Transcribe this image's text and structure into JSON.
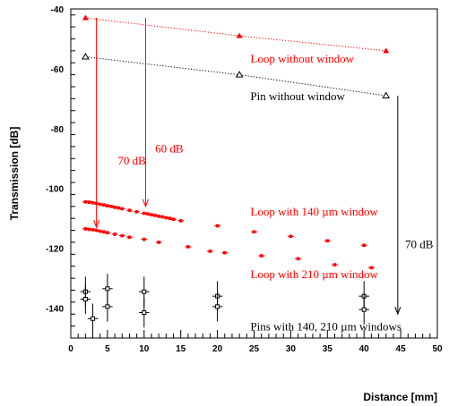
{
  "chart_data": {
    "type": "scatter",
    "title": "",
    "xlabel": "Distance [mm]",
    "ylabel": "Transmission [dB]",
    "xlim": [
      0,
      50
    ],
    "ylim": [
      -150,
      -40
    ],
    "x_ticks": [
      0,
      5,
      10,
      15,
      20,
      25,
      30,
      35,
      40,
      45,
      50
    ],
    "y_ticks": [
      -140,
      -120,
      -100,
      -80,
      -60,
      -40
    ],
    "colors": {
      "red": "#ff0000",
      "black": "#000000"
    },
    "series": [
      {
        "name": "Loop without window",
        "color": "#ff0000",
        "marker": "filled-triangle",
        "line": "dotted",
        "x": [
          2,
          23,
          43
        ],
        "y": [
          -43,
          -49,
          -54
        ]
      },
      {
        "name": "Pin without window",
        "color": "#000000",
        "marker": "open-triangle",
        "line": "dotted",
        "x": [
          2,
          23,
          43
        ],
        "y": [
          -56,
          -62,
          -69
        ]
      },
      {
        "name": "Loop with 140 µm window",
        "color": "#ff0000",
        "marker": "filled-square-xerr",
        "x": [
          2,
          2.5,
          3,
          3.5,
          4,
          4.5,
          5,
          5.5,
          6,
          6.5,
          7,
          8,
          9,
          10,
          10.5,
          11,
          11.5,
          12,
          12.5,
          13,
          13.5,
          14,
          15,
          20,
          25,
          30,
          35,
          40
        ],
        "y": [
          -104.5,
          -104.6,
          -104.8,
          -105,
          -105.3,
          -105.5,
          -105.8,
          -106,
          -106.3,
          -106.5,
          -106.8,
          -107.3,
          -107.8,
          -108.3,
          -108.5,
          -108.8,
          -109,
          -109.3,
          -109.5,
          -109.8,
          -110,
          -110.3,
          -110.8,
          -112.5,
          -114.5,
          -116,
          -117.5,
          -119
        ]
      },
      {
        "name": "Loop with 210 µm window",
        "color": "#ff0000",
        "marker": "filled-square-xerr",
        "x": [
          2,
          2.5,
          3,
          3.5,
          4,
          4.5,
          5,
          6,
          7,
          8,
          10,
          12,
          16,
          19,
          21,
          26,
          31,
          36,
          41
        ],
        "y": [
          -113.5,
          -113.7,
          -113.8,
          -114,
          -114.3,
          -114.5,
          -114.8,
          -115.3,
          -115.8,
          -116.3,
          -117,
          -118,
          -119.5,
          -121,
          -121.5,
          -122.5,
          -123.5,
          -125.5,
          -126.5
        ]
      },
      {
        "name": "Pins with 140, 210 µm windows",
        "color": "#000000",
        "marker": "open-square-xyerr",
        "x": [
          2,
          2,
          3,
          5,
          5,
          10,
          10,
          20,
          20,
          40,
          40
        ],
        "y": [
          -134.5,
          -137,
          -143.5,
          -133.5,
          -139.5,
          -134.5,
          -141.5,
          -136,
          -139.5,
          -136,
          -140.5
        ],
        "yerr": [
          5,
          5,
          5,
          5,
          5,
          5,
          5,
          5,
          5,
          5,
          5
        ],
        "xerr": [
          0.7,
          0.7,
          0.7,
          0.7,
          0.7,
          0.7,
          0.7,
          0.7,
          0.7,
          0.7,
          0.7
        ]
      }
    ],
    "annotations": [
      {
        "id": "loop-no-window",
        "text": "Loop without window",
        "x": 24.5,
        "y": -58,
        "color": "#ff0000"
      },
      {
        "id": "pin-no-window",
        "text": "Pin without window",
        "x": 24.5,
        "y": -70.5,
        "color": "#000000"
      },
      {
        "id": "70db-left",
        "text": "70 dB",
        "x": 6.4,
        "y": -92,
        "color": "#ff0000"
      },
      {
        "id": "60db",
        "text": "60 dB",
        "x": 11.5,
        "y": -88,
        "color": "#ff0000"
      },
      {
        "id": "loop-140",
        "text": "Loop with 140 µm window",
        "x": 24.5,
        "y": -109,
        "color": "#ff0000"
      },
      {
        "id": "70db-right",
        "text": "70 dB",
        "x": 45.6,
        "y": -120,
        "color": "#000000"
      },
      {
        "id": "loop-210",
        "text": "Loop with 210 µm window",
        "x": 24.5,
        "y": -130,
        "color": "#ff0000"
      },
      {
        "id": "pins-140-210",
        "text": "Pins with 140, 210 µm windows",
        "x": 24.5,
        "y": -147.5,
        "color": "#000000"
      }
    ],
    "arrows": [
      {
        "id": "arrow-70db-left",
        "x": 3.5,
        "from": -43,
        "to": -113,
        "color": "#ff0000"
      },
      {
        "id": "arrow-60db",
        "x": 10.2,
        "from": -43,
        "to": -106,
        "color": "#ff0000"
      },
      {
        "id": "arrow-70db-right",
        "x": 44.6,
        "from": -69,
        "to": -142,
        "color": "#000000"
      }
    ]
  }
}
